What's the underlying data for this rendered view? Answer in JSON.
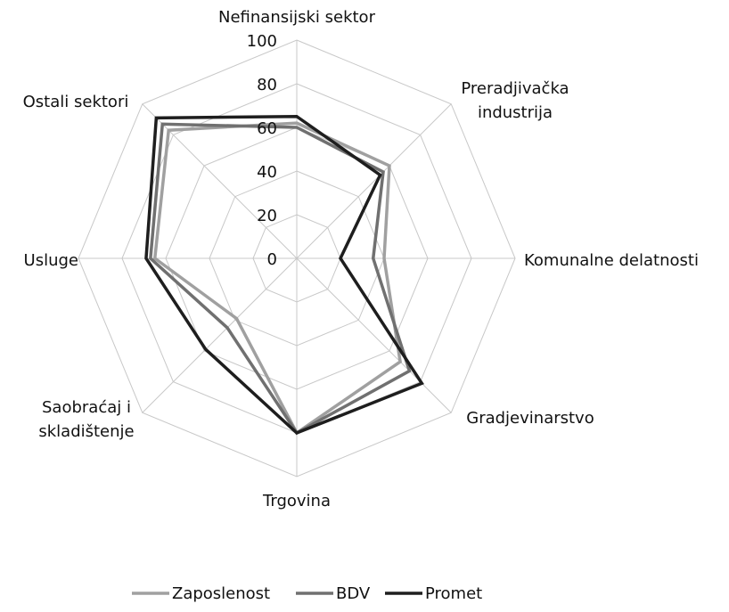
{
  "chart_data": {
    "type": "radar",
    "categories": [
      "Nefinansijski sektor",
      "Preradjivačka\nindustrija",
      "Komunalne delatnosti",
      "Gradjevinarstvo",
      "Trgovina",
      "Saobraćaj i\nskladištenje",
      "Usluge",
      "Ostali sektori"
    ],
    "series": [
      {
        "name": "Zaposlenost",
        "color": "#a0a0a0",
        "values": [
          62,
          60,
          40,
          67,
          80,
          39,
          65,
          83
        ]
      },
      {
        "name": "BDV",
        "color": "#707070",
        "values": [
          60,
          56,
          35,
          73,
          80,
          45,
          67,
          87
        ]
      },
      {
        "name": "Promet",
        "color": "#1e1e1e",
        "values": [
          65,
          54,
          20,
          81,
          80,
          59,
          69,
          91
        ]
      }
    ],
    "ylim": [
      0,
      100
    ],
    "yticks": [
      0,
      20,
      40,
      60,
      80,
      100
    ],
    "grid": true,
    "legend": "bottom"
  }
}
